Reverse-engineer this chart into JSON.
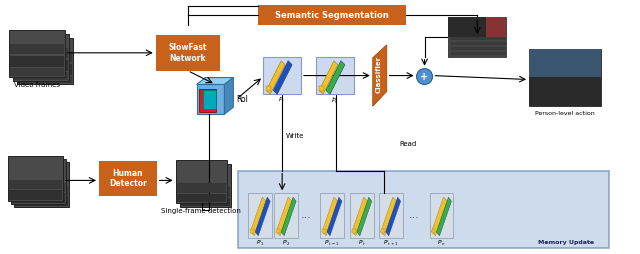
{
  "fig_width": 6.4,
  "fig_height": 2.54,
  "dpi": 100,
  "bg_color": "#ffffff",
  "orange_color": "#c8621a",
  "memory_bg": "#bdd0e8",
  "feature_bg": "#cdd9ef",
  "labels": {
    "video_frames": "Video frames",
    "slowfast": "SlowFast\nNetwork",
    "roi": "RoI",
    "semantic_seg": "Semantic Segmentation",
    "classifier": "Classifier",
    "person_level": "Person-level action",
    "human_detector": "Human\nDetector",
    "single_frame": "Single-frame detection",
    "write": "Write",
    "read": "Read",
    "memory_update": "Memory Update"
  }
}
